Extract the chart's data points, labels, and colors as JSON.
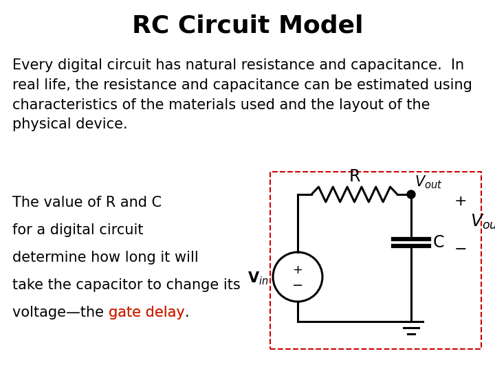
{
  "title": "RC Circuit Model",
  "title_fontsize": 26,
  "title_fontweight": "bold",
  "para1": "Every digital circuit has natural resistance and capacitance.  In\nreal life, the resistance and capacitance can be estimated using\ncharacteristics of the materials used and the layout of the\nphysical device.",
  "para2_lines": [
    "The value of R and C",
    "for a digital circuit",
    "determine how long it will",
    "take the capacitor to change its",
    "voltage—the "
  ],
  "gate_delay": "gate delay",
  "period": ".",
  "highlight_color": "#CC2200",
  "text_color": "#000000",
  "bg_color": "#ffffff",
  "body_fontsize": 15,
  "circuit_box_color": "#CC0000",
  "fig_w": 7.2,
  "fig_h": 5.4,
  "dpi": 100
}
